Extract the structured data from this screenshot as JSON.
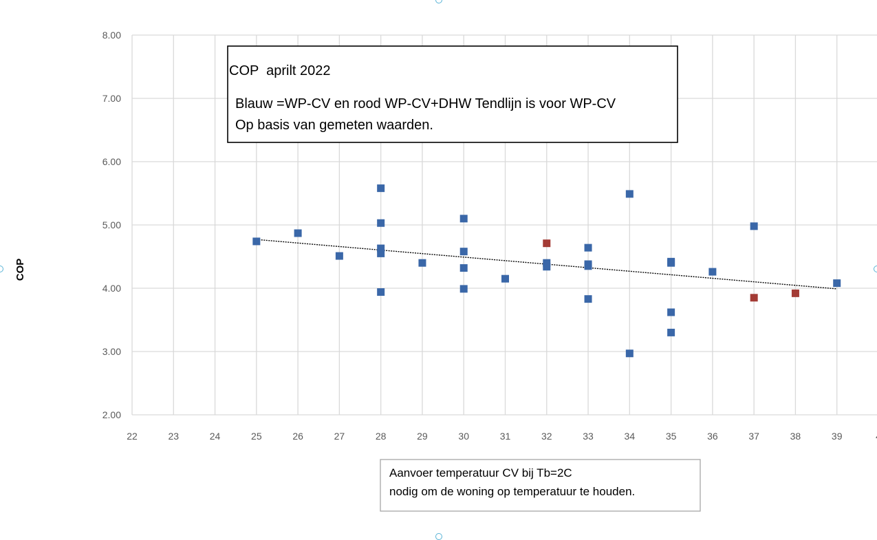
{
  "chart_data": {
    "type": "scatter",
    "xlim": [
      22,
      40
    ],
    "ylim": [
      2.0,
      8.0
    ],
    "x_ticks": [
      "22",
      "23",
      "24",
      "25",
      "26",
      "27",
      "28",
      "29",
      "30",
      "31",
      "32",
      "33",
      "34",
      "35",
      "36",
      "37",
      "38",
      "39",
      "4"
    ],
    "y_ticks": [
      "2.00",
      "3.00",
      "4.00",
      "5.00",
      "6.00",
      "7.00",
      "8.00"
    ],
    "ylabel": "COP",
    "grid": true,
    "series": [
      {
        "color": "#3a67a8",
        "points": [
          [
            25,
            4.74
          ],
          [
            26,
            4.87
          ],
          [
            27,
            4.51
          ],
          [
            28,
            5.58
          ],
          [
            28,
            5.03
          ],
          [
            28,
            4.63
          ],
          [
            28,
            4.55
          ],
          [
            28,
            3.94
          ],
          [
            29,
            4.4
          ],
          [
            30,
            5.1
          ],
          [
            30,
            4.58
          ],
          [
            30,
            4.32
          ],
          [
            30,
            3.99
          ],
          [
            31,
            4.15
          ],
          [
            32,
            4.4
          ],
          [
            32,
            4.34
          ],
          [
            33,
            4.64
          ],
          [
            33,
            4.38
          ],
          [
            33,
            4.35
          ],
          [
            33,
            3.83
          ],
          [
            34,
            5.49
          ],
          [
            34,
            2.97
          ],
          [
            35,
            4.42
          ],
          [
            35,
            4.4
          ],
          [
            35,
            3.62
          ],
          [
            35,
            3.3
          ],
          [
            36,
            4.26
          ],
          [
            37,
            4.98
          ],
          [
            39,
            4.08
          ]
        ]
      },
      {
        "color": "#a33b35",
        "points": [
          [
            32,
            4.71
          ],
          [
            37,
            3.85
          ],
          [
            38,
            3.92
          ]
        ]
      }
    ],
    "trendline": {
      "series_index": 0,
      "x_range": [
        25,
        39
      ],
      "y_range": [
        4.77,
        3.99
      ],
      "style": "dotted",
      "color": "#000000"
    },
    "annotation_box": {
      "title": "COP  aprilt 2022",
      "line1": "Blauw =WP-CV en rood WP-CV+DHW Tendlijn is voor WP-CV",
      "line2": "Op basis van gemeten waarden."
    },
    "xlabel_box": {
      "line1": "Aanvoer temperatuur CV bij Tb=2C",
      "line2": "nodig om de woning op temperatuur te houden."
    }
  }
}
